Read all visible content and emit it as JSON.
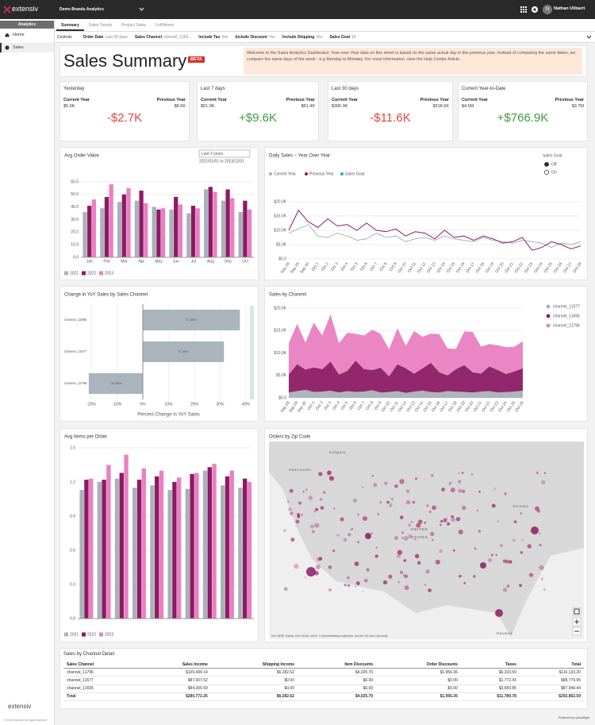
{
  "app": {
    "logo": "extensiv",
    "workspace": "Demo Brands Analytics",
    "user_initial": "N",
    "user_name": "Nathan Ulibarri"
  },
  "sidebar": {
    "section": "Analytics",
    "items": [
      "Home",
      "Sales"
    ],
    "footer_logo": "extensiv",
    "copyright": "© 2023 Extensiv. All rights reserved"
  },
  "tabs": [
    "Summary",
    "Sales Trends",
    "Product Sales",
    "Fulfillment"
  ],
  "controls": {
    "label": "Controls",
    "filters": [
      {
        "name": "Order Date",
        "value": "Last 30 days"
      },
      {
        "name": "Sales Channel",
        "value": "channel_1169..."
      },
      {
        "name": "Include Tax",
        "value": "Yes"
      },
      {
        "name": "Include Discount",
        "value": "Yes"
      },
      {
        "name": "Include Shipping",
        "value": "Yes"
      },
      {
        "name": "Sales Goal",
        "value": "10"
      }
    ]
  },
  "header": {
    "title": "Sales Summary",
    "badge": "BETA",
    "notice": "Welcome to the Sales Analytics Dashboard. Year-over-Year data on this sheet is based on the same actual day in the previous year. Instead of comparing the same dates, we compare the same days of the week - e.g Monday to Monday. For more information, view the Help Center Article."
  },
  "kpi_labels": {
    "current": "Current Year",
    "previous": "Previous Year"
  },
  "kpis": [
    {
      "label": "Yesterday",
      "current": "$5.9K",
      "previous": "$8.6K",
      "change": "-$2.7K",
      "color": "#e0453f"
    },
    {
      "label": "Last 7 days",
      "current": "$61.0K",
      "previous": "$51.4K",
      "change": "+$9.6K",
      "color": "#3e9b3a"
    },
    {
      "label": "Last 30 days",
      "current": "$306.9K",
      "previous": "$318.6K",
      "change": "-$11.6K",
      "color": "#e0453f"
    },
    {
      "label": "Current Year-to-Date",
      "current": "$4.5M",
      "previous": "$3.7M",
      "change": "+$766.9K",
      "color": "#3e9b3a"
    }
  ],
  "avg_order_value": {
    "type": "bar",
    "title": "Avg Order Value",
    "period": "Last 3 years",
    "range": "2021/01/01 to 2023/12/31",
    "categories": [
      "Jan",
      "Feb",
      "Mar",
      "Apr",
      "May",
      "Jun",
      "Jul",
      "Aug",
      "Sep",
      "Oct"
    ],
    "series": [
      {
        "name": "2021",
        "color": "#a9b1b9",
        "values": [
          36,
          39,
          44,
          45,
          40,
          38,
          35,
          54,
          45,
          36
        ]
      },
      {
        "name": "2022",
        "color": "#8c1b64",
        "values": [
          41,
          48,
          50,
          53,
          38,
          48,
          41,
          56,
          54,
          45
        ]
      },
      {
        "name": "2023",
        "color": "#ea80c2",
        "values": [
          46,
          58,
          55,
          43,
          39,
          42,
          39,
          52,
          47,
          38
        ]
      }
    ],
    "ylim": [
      0,
      60
    ],
    "yticks": [
      {
        "value": 0,
        "label": "0.0"
      },
      {
        "value": 10,
        "label": "10.0"
      },
      {
        "value": 20,
        "label": "20.0"
      },
      {
        "value": 30,
        "label": "30.0"
      },
      {
        "value": 40,
        "label": "40.0"
      },
      {
        "value": 50,
        "label": "50.0"
      },
      {
        "value": 60,
        "label": "60.0"
      }
    ]
  },
  "daily_sales": {
    "type": "line",
    "title": "Daily Sales – Year Over Year",
    "goal_control": {
      "label": "Sales Goal",
      "options": [
        "Off",
        "On"
      ]
    },
    "x": [
      "Sep 28",
      "Sep 29",
      "Sep 30",
      "Oct 1",
      "Oct 2",
      "Oct 3",
      "Oct 4",
      "Oct 5",
      "Oct 6",
      "Oct 7",
      "Oct 8",
      "Oct 9",
      "Oct 10",
      "Oct 11",
      "Oct 12",
      "Oct 13",
      "Oct 14",
      "Oct 15",
      "Oct 16",
      "Oct 17",
      "Oct 18",
      "Oct 19",
      "Oct 20",
      "Oct 21",
      "Oct 22",
      "Oct 23",
      "Oct 24",
      "Oct 25",
      "Oct 26",
      "Oct 27",
      "Oct 28"
    ],
    "series": [
      {
        "name": "Current Year",
        "color": "#a9b1b9",
        "values": [
          9000,
          10500,
          12000,
          8000,
          7500,
          9000,
          8000,
          6500,
          7000,
          9000,
          7500,
          8000,
          6000,
          7000,
          7500,
          6500,
          8000,
          7000,
          6500,
          6000,
          7500,
          6500,
          6000,
          5500,
          6500,
          6000,
          5500,
          4000,
          5500,
          5000,
          6000
        ]
      },
      {
        "name": "Previous Year",
        "color": "#8c1b64",
        "values": [
          10000,
          17000,
          13000,
          11000,
          14000,
          11500,
          12000,
          10000,
          12500,
          10000,
          9500,
          10500,
          8000,
          9500,
          9000,
          7000,
          10000,
          7500,
          8000,
          6500,
          8000,
          7000,
          5500,
          6000,
          7500,
          3000,
          4000,
          6000,
          5000,
          3500,
          4500
        ]
      }
    ],
    "goal_legend": {
      "name": "Sales Goal",
      "color": "#27b0b0"
    },
    "ylim": [
      0,
      20000
    ],
    "yticks": [
      {
        "value": 0,
        "label": "$0.0"
      },
      {
        "value": 5000,
        "label": "$5.0K"
      },
      {
        "value": 10000,
        "label": "$10.0K"
      },
      {
        "value": 15000,
        "label": "$15.0K"
      },
      {
        "value": 20000,
        "label": "$20.0K"
      }
    ]
  },
  "yoy_change": {
    "type": "hbar",
    "title": "Change in YoY Sales by Sales Channel",
    "color": "#a9b4be",
    "categories": [
      "channel_11695",
      "channel_11577",
      "channel_11796"
    ],
    "values": [
      37.66,
      31.46,
      -20.95
    ],
    "value_labels": [
      "37.66%",
      "31.46%",
      "-20.95%"
    ],
    "xlim": [
      -20,
      40
    ],
    "xticks": [
      {
        "value": -20,
        "label": "-20%"
      },
      {
        "value": -10,
        "label": "-10%"
      },
      {
        "value": 0,
        "label": "0%"
      },
      {
        "value": 10,
        "label": "10%"
      },
      {
        "value": 20,
        "label": "20%"
      },
      {
        "value": 30,
        "label": "30%"
      },
      {
        "value": 40,
        "label": "40%"
      }
    ],
    "xlabel": "Percent Change in YoY Sales"
  },
  "sales_by_channel": {
    "type": "area",
    "title": "Sales by Channel",
    "x": [
      "Sep 28",
      "Sep 29",
      "Sep 30",
      "Oct 1",
      "Oct 2",
      "Oct 3",
      "Oct 4",
      "Oct 5",
      "Oct 6",
      "Oct 7",
      "Oct 8",
      "Oct 9",
      "Oct 10",
      "Oct 11",
      "Oct 12",
      "Oct 13",
      "Oct 14",
      "Oct 15",
      "Oct 16",
      "Oct 17",
      "Oct 18",
      "Oct 19",
      "Oct 20",
      "Oct 21",
      "Oct 22",
      "Oct 23",
      "Oct 24",
      "Oct 25",
      "Oct 26"
    ],
    "series": [
      {
        "name": "channel_11577",
        "color": "#a9b1b9",
        "values": [
          1200,
          1500,
          1800,
          1300,
          1400,
          1600,
          1200,
          1500,
          1300,
          1400,
          1700,
          1200,
          1300,
          1500,
          1100,
          1400,
          1600,
          1300,
          1200,
          1500,
          1400,
          1300,
          1200,
          1400,
          1500,
          1200,
          1300,
          1400,
          1600
        ]
      },
      {
        "name": "channel_11695",
        "color": "#8c1b64",
        "values": [
          4000,
          6000,
          4500,
          5500,
          5000,
          6500,
          4000,
          4500,
          7000,
          5000,
          4500,
          5500,
          3500,
          6000,
          5500,
          4000,
          5000,
          6500,
          4500,
          3500,
          5000,
          6000,
          4500,
          4000,
          5500,
          5000,
          4000,
          4500,
          5000
        ]
      },
      {
        "name": "channel_11796",
        "color": "#ea80c2",
        "values": [
          7000,
          9000,
          6000,
          10000,
          7500,
          10500,
          7000,
          8500,
          6000,
          7500,
          9000,
          7500,
          6000,
          8000,
          5000,
          9500,
          7000,
          6500,
          8500,
          6000,
          4500,
          7500,
          9000,
          6000,
          5000,
          5500,
          6000,
          5500,
          6000
        ]
      }
    ],
    "ylim": [
      0,
      20000
    ],
    "yticks": [
      {
        "value": 0,
        "label": "$0.0"
      },
      {
        "value": 5000,
        "label": "$5.0K"
      },
      {
        "value": 10000,
        "label": "$10.0K"
      },
      {
        "value": 15000,
        "label": "$15.0K"
      },
      {
        "value": 20000,
        "label": "$20.0K"
      }
    ]
  },
  "avg_items": {
    "type": "bar",
    "title": "Avg Items per Order",
    "categories": [
      null,
      null,
      null,
      null,
      null,
      null,
      null,
      null,
      null,
      null
    ],
    "series": [
      {
        "name": "2021",
        "color": "#a9b1b9",
        "values": [
          1.13,
          1.2,
          1.23,
          1.15,
          1.17,
          1.13,
          1.14,
          1.3,
          1.17,
          1.15
        ]
      },
      {
        "name": "2022",
        "color": "#8c1b64",
        "values": [
          1.22,
          1.22,
          1.28,
          1.22,
          1.25,
          1.2,
          1.27,
          1.33,
          1.25,
          1.23
        ]
      },
      {
        "name": "2023",
        "color": "#ea80c2",
        "values": [
          1.23,
          1.35,
          1.44,
          1.32,
          1.3,
          1.24,
          1.28,
          1.36,
          1.3,
          1.2
        ]
      }
    ],
    "ylim": [
      0,
      1.5
    ],
    "yticks": [
      {
        "value": 0,
        "label": "0.0"
      },
      0.3,
      0.6,
      0.9,
      1.2,
      1.5
    ]
  },
  "orders_map": {
    "title": "Orders by Zip Code",
    "places": [
      "Calgary",
      "Vancouver",
      "UNITED",
      "STATES",
      "Toronto",
      "Havana"
    ],
    "attribution": "Esri, HERE, Garmin, FAO, NOAA, USGS, © OpenStreetMap contributors, and the GIS User Community"
  },
  "detail_table": {
    "title": "Sales by Channel Detail",
    "columns": [
      "Sales Channel",
      "Sales Income",
      "Shipping Income",
      "Item Discounts",
      "Order Discounts",
      "Taxes",
      "Total"
    ],
    "rows": [
      [
        "channel_11796",
        "$109,499.14",
        "$6,282.62",
        "$4,025.70",
        "$1,956.36",
        "$6,333.50",
        "$116,133.20"
      ],
      [
        "channel_11577",
        "$87,007.52",
        "$0.00",
        "$0.00",
        "$0.00",
        "$1,772.43",
        "$88,779.95"
      ],
      [
        "channel_11695",
        "$84,265.59",
        "$0.00",
        "$0.00",
        "$0.00",
        "$3,683.85",
        "$87,949.44"
      ]
    ],
    "total": [
      "Total",
      "$280,772.25",
      "$6,282.62",
      "$4,025.70",
      "$1,956.36",
      "$11,789.78",
      "$292,862.59"
    ]
  },
  "footer": {
    "powered_by": "Powered by QuickSight"
  }
}
